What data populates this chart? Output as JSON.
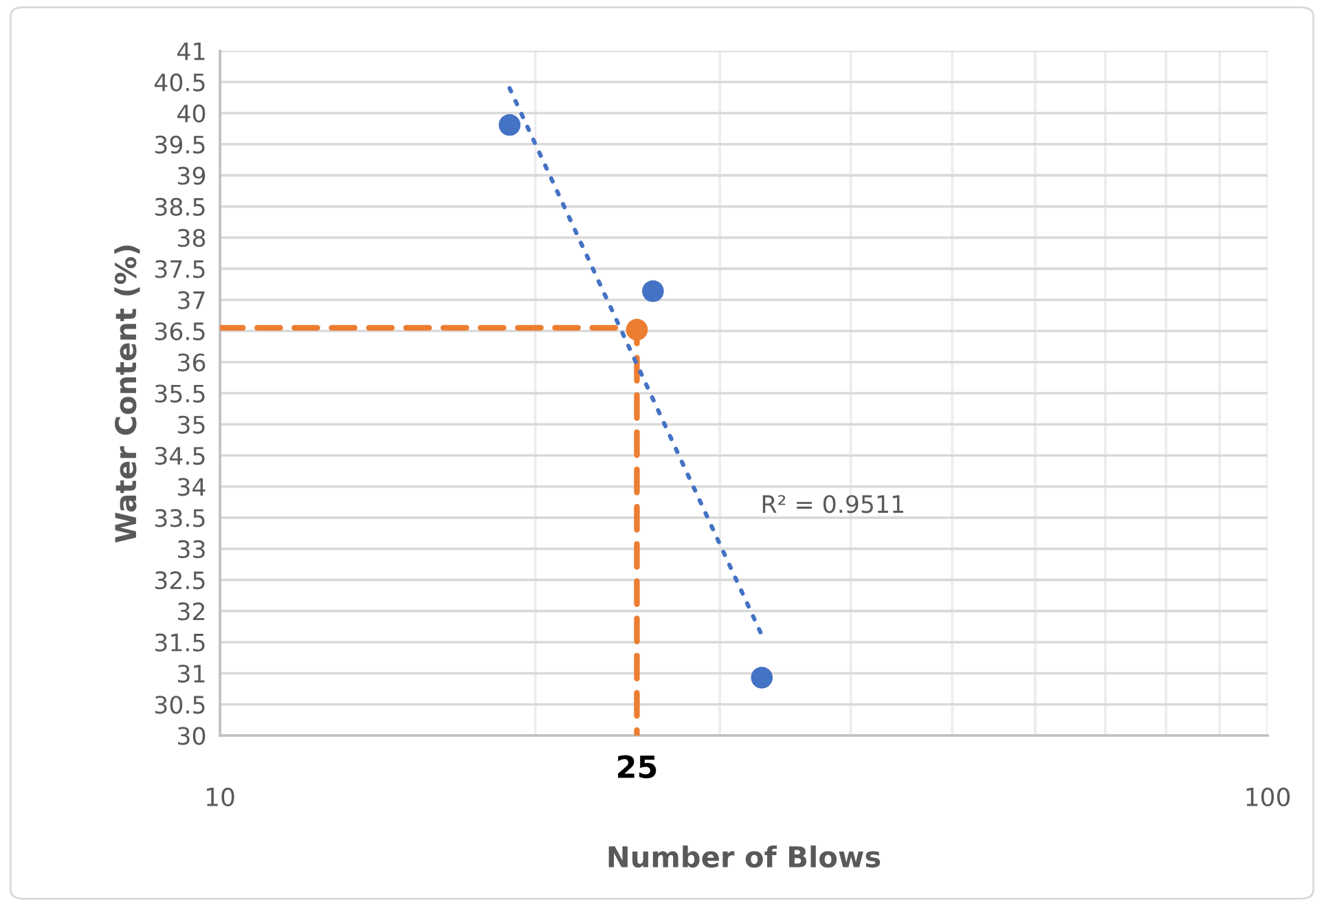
{
  "chart_data": {
    "type": "scatter",
    "xlabel": "Number of Blows",
    "ylabel": "Water Content (%)",
    "log": "x",
    "grid": true,
    "xlim": [
      10,
      100
    ],
    "xticks": [
      10,
      {
        "value": 20,
        "label": null
      },
      {
        "value": 30,
        "label": null
      },
      {
        "value": 40,
        "label": null
      },
      {
        "value": 50,
        "label": null
      },
      {
        "value": 60,
        "label": null
      },
      {
        "value": 70,
        "label": null
      },
      {
        "value": 80,
        "label": null
      },
      {
        "value": 90,
        "label": null
      },
      100
    ],
    "ylim": [
      30,
      41
    ],
    "yticks": [
      30,
      30.5,
      31,
      31.5,
      32,
      32.5,
      33,
      33.5,
      34,
      34.5,
      35,
      35.5,
      36,
      36.5,
      37,
      37.5,
      38,
      38.5,
      39,
      39.5,
      40,
      40.5,
      41
    ],
    "series": [
      {
        "type": "line",
        "color": "#ed7d31",
        "line_style": "dashed",
        "marker": "none",
        "x": [
          10,
          25,
          25
        ],
        "values": [
          36.55,
          36.55,
          30
        ]
      },
      {
        "color": "#4472c4",
        "marker": "circle",
        "x": [
          18.9,
          25.9,
          32.9
        ],
        "values": [
          39.81,
          37.14,
          30.93
        ]
      },
      {
        "type": "line",
        "color": "#4472c4",
        "line_style": "dotted",
        "marker": "none",
        "x": [
          18.9,
          32.8
        ],
        "values": [
          40.4,
          31.66
        ]
      },
      {
        "color": "#ed7d31",
        "marker": "circle",
        "x": [
          25
        ],
        "values": [
          36.52
        ]
      }
    ],
    "annotations": [
      "R² = 0.9511",
      {
        "text": "25",
        "x": 25,
        "y": 30
      }
    ]
  }
}
